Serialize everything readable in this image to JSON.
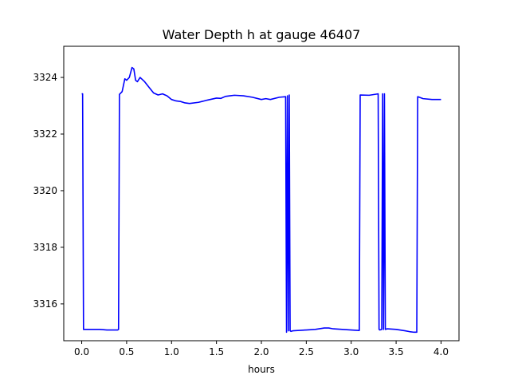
{
  "chart_data": {
    "type": "line",
    "title": "Water Depth h at gauge 46407",
    "xlabel": "hours",
    "ylabel": "",
    "xlim": [
      -0.2,
      4.2
    ],
    "ylim": [
      3314.7,
      3325.1
    ],
    "xticks": [
      0.0,
      0.5,
      1.0,
      1.5,
      2.0,
      2.5,
      3.0,
      3.5,
      4.0
    ],
    "xtick_labels": [
      "0.0",
      "0.5",
      "1.0",
      "1.5",
      "2.0",
      "2.5",
      "3.0",
      "3.5",
      "4.0"
    ],
    "yticks": [
      3316,
      3318,
      3320,
      3322,
      3324
    ],
    "ytick_labels": [
      "3316",
      "3318",
      "3320",
      "3322",
      "3324"
    ],
    "grid": false,
    "series": [
      {
        "color": "#0000ff",
        "x": [
          0.0,
          0.01,
          0.02,
          0.1,
          0.2,
          0.28,
          0.3,
          0.35,
          0.4,
          0.41,
          0.42,
          0.45,
          0.48,
          0.5,
          0.53,
          0.56,
          0.58,
          0.6,
          0.62,
          0.65,
          0.7,
          0.75,
          0.8,
          0.85,
          0.9,
          0.95,
          1.0,
          1.05,
          1.1,
          1.15,
          1.2,
          1.3,
          1.4,
          1.5,
          1.55,
          1.6,
          1.65,
          1.7,
          1.8,
          1.9,
          2.0,
          2.05,
          2.1,
          2.2,
          2.27,
          2.28,
          2.29,
          2.3,
          2.31,
          2.32,
          2.33,
          2.35,
          2.5,
          2.6,
          2.7,
          2.75,
          2.8,
          2.9,
          3.0,
          3.09,
          3.1,
          3.2,
          3.3,
          3.31,
          3.32,
          3.34,
          3.35,
          3.36,
          3.37,
          3.38,
          3.4,
          3.5,
          3.6,
          3.65,
          3.7,
          3.73,
          3.74,
          3.8,
          3.9,
          4.0
        ],
        "y": [
          3323.42,
          3323.42,
          3315.1,
          3315.1,
          3315.1,
          3315.08,
          3315.08,
          3315.08,
          3315.08,
          3315.1,
          3323.4,
          3323.5,
          3323.95,
          3323.9,
          3324.0,
          3324.35,
          3324.3,
          3323.9,
          3323.85,
          3324.0,
          3323.85,
          3323.65,
          3323.45,
          3323.38,
          3323.42,
          3323.35,
          3323.22,
          3323.17,
          3323.15,
          3323.1,
          3323.08,
          3323.12,
          3323.2,
          3323.27,
          3323.26,
          3323.33,
          3323.35,
          3323.37,
          3323.35,
          3323.3,
          3323.22,
          3323.25,
          3323.22,
          3323.3,
          3323.32,
          3315.0,
          3323.35,
          3315.05,
          3323.38,
          3315.05,
          3315.03,
          3315.05,
          3315.08,
          3315.1,
          3315.15,
          3315.15,
          3315.12,
          3315.1,
          3315.08,
          3315.06,
          3323.38,
          3323.37,
          3323.42,
          3315.1,
          3315.08,
          3315.1,
          3323.42,
          3315.1,
          3323.42,
          3315.1,
          3315.12,
          3315.1,
          3315.05,
          3315.02,
          3315.0,
          3315.0,
          3323.32,
          3323.25,
          3323.22,
          3323.22
        ]
      }
    ]
  }
}
